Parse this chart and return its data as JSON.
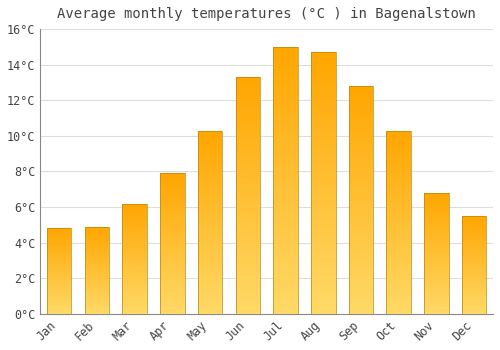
{
  "title": "Average monthly temperatures (°C ) in Bagenalstown",
  "months": [
    "Jan",
    "Feb",
    "Mar",
    "Apr",
    "May",
    "Jun",
    "Jul",
    "Aug",
    "Sep",
    "Oct",
    "Nov",
    "Dec"
  ],
  "values": [
    4.8,
    4.9,
    6.2,
    7.9,
    10.3,
    13.3,
    15.0,
    14.7,
    12.8,
    10.3,
    6.8,
    5.5
  ],
  "bar_color_top": "#FFA500",
  "bar_color_bottom": "#FFD966",
  "bar_edge_color": "#B8860B",
  "background_color": "#FFFFFF",
  "plot_bg_color": "#FFFFFF",
  "grid_color": "#DDDDDD",
  "text_color": "#444444",
  "ylim": [
    0,
    16
  ],
  "yticks": [
    0,
    2,
    4,
    6,
    8,
    10,
    12,
    14,
    16
  ],
  "title_fontsize": 10,
  "tick_fontsize": 8.5,
  "bar_width": 0.65
}
